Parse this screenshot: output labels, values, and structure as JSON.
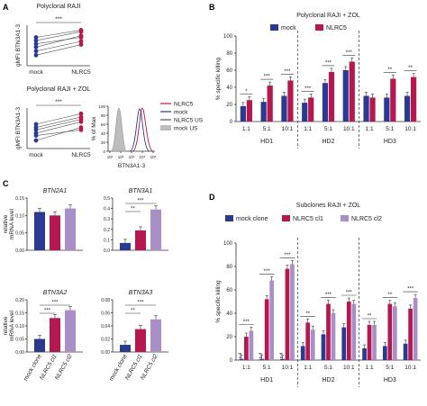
{
  "colors": {
    "mock": "#2b3990",
    "nlrc5": "#b5174f",
    "cl2": "#a98fc8",
    "grey": "#a6a6a6",
    "axis": "#333333"
  },
  "panels": {
    "A": "A",
    "B": "B",
    "C": "C",
    "D": "D"
  },
  "chart_data": [
    {
      "id": "A1",
      "type": "scatter",
      "title": "Polyclonal RAJI",
      "ylabel": "gMFI BTN3A1-3",
      "categories": [
        "mock",
        "NLRC5"
      ],
      "significance": "***",
      "ylim": [
        0,
        10
      ],
      "pairs": [
        [
          2.6,
          5.2
        ],
        [
          3.6,
          6.0
        ],
        [
          4.6,
          7.4
        ],
        [
          5.4,
          7.0
        ],
        [
          6.2,
          8.4
        ],
        [
          7.0,
          8.8
        ]
      ]
    },
    {
      "id": "A2",
      "type": "scatter",
      "title": "Polyclonal RAJI + ZOL",
      "ylabel": "gMFI BTN3A1-3",
      "categories": [
        "mock",
        "NLRC5"
      ],
      "significance": "***",
      "ylim": [
        0,
        10
      ],
      "pairs": [
        [
          2.0,
          5.2
        ],
        [
          3.2,
          4.6
        ],
        [
          3.8,
          6.6
        ],
        [
          4.6,
          7.2
        ],
        [
          5.2,
          7.8
        ],
        [
          6.0,
          8.6
        ]
      ]
    },
    {
      "id": "A3",
      "type": "line",
      "title": "",
      "xlabel": "BTN3A1-3",
      "ylabel": "% of Max",
      "xticks": [
        "10¹",
        "10²",
        "10³",
        "10⁴",
        "10⁵"
      ],
      "yticks": [
        "0",
        "20",
        "40",
        "60",
        "80",
        "100"
      ],
      "legend": [
        "NLRC5",
        "mock",
        "NLRC5 US",
        "mock US"
      ]
    },
    {
      "id": "B",
      "type": "bar",
      "title": "Polyclonal RAJI + ZOL",
      "ylabel": "% specific killing",
      "ylim": [
        0,
        100
      ],
      "yticks": [
        "0",
        "20",
        "40",
        "60",
        "80",
        "100"
      ],
      "legend": [
        "mock",
        "NLRC5"
      ],
      "groups": [
        {
          "name": "HD1",
          "categories": [
            "1:1",
            "5:1",
            "10:1"
          ],
          "mock": [
            18,
            23,
            30
          ],
          "nlrc5": [
            25,
            42,
            48
          ],
          "sig": [
            "*",
            "***",
            "***"
          ]
        },
        {
          "name": "HD2",
          "categories": [
            "1:1",
            "5:1",
            "10:1"
          ],
          "mock": [
            22,
            45,
            60
          ],
          "nlrc5": [
            28,
            58,
            70
          ],
          "sig": [
            "***",
            "***",
            "***"
          ]
        },
        {
          "name": "HD3",
          "categories": [
            "1:1",
            "5:1",
            "10:1"
          ],
          "mock": [
            30,
            28,
            30
          ],
          "nlrc5": [
            28,
            50,
            52
          ],
          "sig": [
            "",
            "**",
            "**"
          ]
        }
      ]
    },
    {
      "id": "C",
      "type": "bar",
      "ylabel": "relative mRNA level",
      "categories": [
        "mock clone",
        "NLRC5 cl1",
        "NLRC5 cl2"
      ],
      "legend": [
        "mock clone",
        "NLRC5 cl1",
        "NLRC5 cl2"
      ],
      "plots": [
        {
          "title": "BTN2A1",
          "values": [
            0.11,
            0.1,
            0.12
          ],
          "ymax": 0.15,
          "yticks": [
            "0.00",
            "0.05",
            "0.10",
            "0.15"
          ],
          "sig": []
        },
        {
          "title": "BTN3A1",
          "values": [
            0.07,
            0.19,
            0.39
          ],
          "ymax": 0.5,
          "yticks": [
            "0.0",
            "0.1",
            "0.2",
            "0.3",
            "0.4",
            "0.5"
          ],
          "sig": [
            "**",
            "***"
          ]
        },
        {
          "title": "BTN3A2",
          "values": [
            0.05,
            0.13,
            0.16
          ],
          "ymax": 0.2,
          "yticks": [
            "0.00",
            "0.05",
            "0.10",
            "0.15",
            "0.20"
          ],
          "sig": [
            "***",
            "***"
          ]
        },
        {
          "title": "BTN3A3",
          "values": [
            0.011,
            0.035,
            0.05
          ],
          "ymax": 0.08,
          "yticks": [
            "0.00",
            "0.02",
            "0.04",
            "0.06",
            "0.08"
          ],
          "sig": [
            "**",
            "***"
          ]
        }
      ]
    },
    {
      "id": "D",
      "type": "bar",
      "title": "Subclones RAJI + ZOL",
      "ylabel": "% specific killing",
      "ylim": [
        0,
        100
      ],
      "yticks": [
        "0",
        "20",
        "40",
        "60",
        "80",
        "100"
      ],
      "legend": [
        "mock clone",
        "NLRC5 cl1",
        "NLRC5 cl2"
      ],
      "groups": [
        {
          "name": "HD1",
          "categories": [
            "1:1",
            "5:1",
            "10:1"
          ],
          "mock": [
            1,
            1,
            1
          ],
          "cl1": [
            20,
            52,
            78
          ],
          "cl2": [
            25,
            68,
            82
          ],
          "nd": [
            "n.d",
            "n.d",
            "n.d"
          ],
          "sig": [
            "***",
            "***",
            "***"
          ]
        },
        {
          "name": "HD2",
          "categories": [
            "1:1",
            "5:1",
            "10:1"
          ],
          "mock": [
            12,
            22,
            28
          ],
          "cl1": [
            32,
            48,
            50
          ],
          "cl2": [
            26,
            40,
            48
          ],
          "nd": [],
          "sig": [
            "**",
            "***",
            "***"
          ]
        },
        {
          "name": "HD3",
          "categories": [
            "1:1",
            "5:1",
            "10:1"
          ],
          "mock": [
            10,
            12,
            14
          ],
          "cl1": [
            30,
            48,
            44
          ],
          "cl2": [
            30,
            46,
            53
          ],
          "nd": [],
          "sig": [
            "**",
            "**",
            "***"
          ]
        }
      ]
    }
  ]
}
